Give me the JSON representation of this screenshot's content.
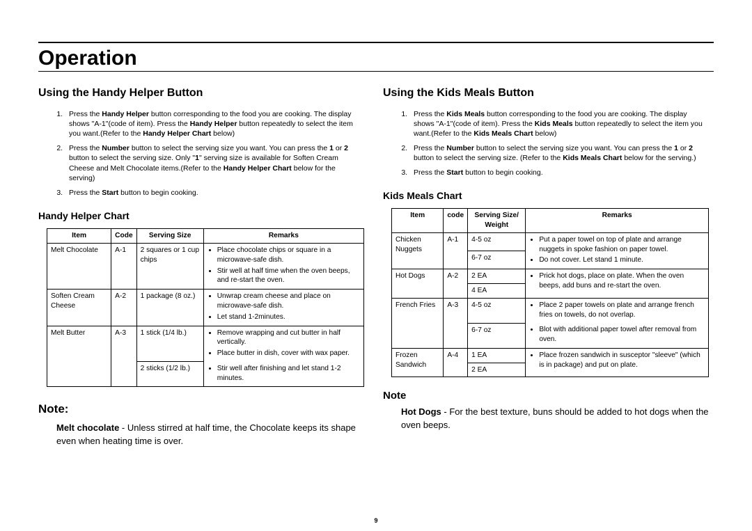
{
  "section_title": "Operation",
  "page_number": "9",
  "left": {
    "title": "Using the Handy Helper Button",
    "steps": [
      "Press the <b>Handy Helper</b> button corresponding to the food you are cooking. The display shows \"A-1\"(code of item).  Press the <b>Handy Helper</b> button repeatedly to select the item you want.(Refer to the <b>Handy Helper Chart</b> below)",
      "Press the <b>Number</b> button to select the serving size you want. You can press the <b>1</b> or <b>2</b> button to select the serving size. Only \"<b>1</b>\" serving size is available for Soften Cream Cheese and Melt Chocolate items.(Refer to the <b>Handy Helper Chart</b> below for the serving)",
      "Press the <b>Start</b> button to begin cooking."
    ],
    "chart_title": "Handy Helper Chart",
    "headers": [
      "Item",
      "Code",
      "Serving Size",
      "Remarks"
    ],
    "rows": [
      {
        "item": "Melt Chocolate",
        "code": "A-1",
        "size": "2 squares or 1 cup chips",
        "remarks": [
          "Place chocolate chips or square in a microwave-safe dish.",
          "Stir well at half time when the oven beeps, and re-start the oven."
        ]
      },
      {
        "item": "Soften Cream Cheese",
        "code": "A-2",
        "size": "1 package (8 oz.)",
        "remarks": [
          "Unwrap cream cheese and place on microwave-safe dish.",
          "Let stand 1-2minutes."
        ]
      },
      {
        "item": "Melt Butter",
        "code": "A-3",
        "size_rows": [
          {
            "size": "1 stick (1/4 lb.)",
            "remarks": [
              "Remove wrapping and cut butter in half vertically.",
              "Place butter in dish, cover with wax paper."
            ]
          },
          {
            "size": "2 sticks (1/2 lb.)",
            "remarks": [
              "Stir well after finishing and let stand 1-2 minutes."
            ]
          }
        ]
      }
    ],
    "note_title": "Note:",
    "note_body": "<b>Melt chocolate</b> - Unless stirred at half time, the Chocolate keeps its shape even when heating time is over."
  },
  "right": {
    "title": "Using the Kids Meals Button",
    "steps": [
      "Press the <b>Kids Meals</b> button corresponding to the food you are cooking. The display shows \"A-1\"(code of item). Press the <b>Kids Meals</b> button repeatedly to select the item you want.(Refer to the <b>Kids Meals Chart</b> below)",
      "Press the <b>Number</b> button to select the serving size you want. You can press the <b>1</b> or <b>2</b> button to select the serving size. (Refer to the <b>Kids Meals Chart</b> below for the serving.)",
      "Press the <b>Start</b> button to begin cooking."
    ],
    "chart_title": "Kids Meals Chart",
    "headers": [
      "Item",
      "code",
      "Serving Size/ Weight",
      "Remarks"
    ],
    "rows": [
      {
        "item": "Chicken Nuggets",
        "code": "A-1",
        "sizes": [
          "4-5 oz",
          "6-7 oz"
        ],
        "remarks": [
          "Put a paper towel on top of plate and arrange nuggets in spoke fashion on paper towel.",
          "Do not cover. Let stand 1 minute."
        ]
      },
      {
        "item": "Hot Dogs",
        "code": "A-2",
        "sizes": [
          "2 EA",
          "4 EA"
        ],
        "remarks": [
          "Prick hot dogs, place on plate. When the oven beeps, add buns and re-start the oven."
        ]
      },
      {
        "item": "French Fries",
        "code": "A-3",
        "sizes": [
          "4-5 oz",
          "6-7 oz"
        ],
        "remarks_split": [
          [
            "Place 2 paper towels on plate and arrange french fries on towels, do not overlap."
          ],
          [
            "Blot with additional paper towel after removal from oven."
          ]
        ]
      },
      {
        "item": "Frozen Sandwich",
        "code": "A-4",
        "sizes": [
          "1 EA",
          "2 EA"
        ],
        "remarks": [
          "Place frozen sandwich in susceptor \"sleeve\" (which is in package) and put on plate."
        ]
      }
    ],
    "note_title": "Note",
    "note_body": "<b>Hot Dogs</b> -  For the best texture, buns should be added to hot dogs when the oven beeps."
  }
}
